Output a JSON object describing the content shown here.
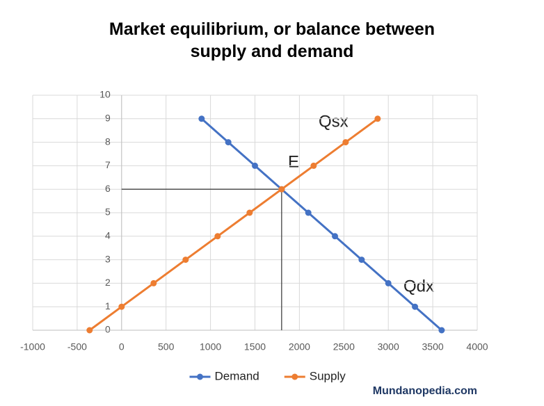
{
  "chart_data": {
    "type": "line",
    "title": "Market equilibrium, or balance between supply and demand",
    "series": [
      {
        "name": "Demand",
        "color": "#4472c4",
        "x": [
          900,
          1200,
          1500,
          1800,
          2100,
          2400,
          2700,
          3000,
          3300,
          3600
        ],
        "values": [
          9,
          8,
          7,
          6,
          5,
          4,
          3,
          2,
          1,
          0
        ]
      },
      {
        "name": "Supply",
        "color": "#ed7d31",
        "x": [
          -360,
          0,
          360,
          720,
          1080,
          1440,
          1800,
          2160,
          2520,
          2880
        ],
        "values": [
          0,
          1,
          2,
          3,
          4,
          5,
          6,
          7,
          8,
          9
        ]
      }
    ],
    "equilibrium": {
      "x": 1800,
      "y": 6
    },
    "xlim": [
      -1000,
      4000
    ],
    "xticks": [
      -1000,
      -500,
      0,
      500,
      1000,
      1500,
      2000,
      2500,
      3000,
      3500,
      4000
    ],
    "ylim": [
      0,
      10
    ],
    "yticks": [
      0,
      1,
      2,
      3,
      4,
      5,
      6,
      7,
      8,
      9,
      10
    ],
    "grid": true,
    "legend": "bottom",
    "annotations": [
      "Qsx",
      "E",
      "Qdx"
    ],
    "source": "Mundanopedia.com"
  }
}
